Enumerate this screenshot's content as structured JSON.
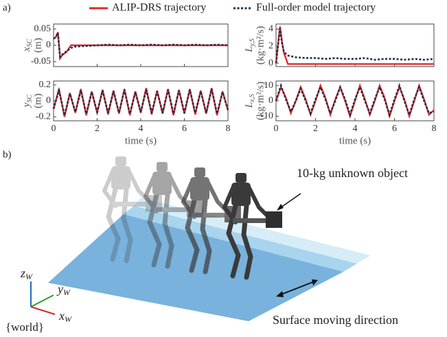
{
  "panel_labels": [
    "a)",
    "b)"
  ],
  "chart_data": [
    {
      "type": "line",
      "ylabel": {
        "symbol": "x",
        "subscript": "SC",
        "unit": "(m)"
      },
      "x": [
        0,
        0.1,
        0.2,
        0.3,
        0.4,
        0.6,
        0.8,
        1,
        1.5,
        2,
        2.5,
        3,
        3.5,
        4,
        4.5,
        5,
        5.5,
        6,
        6.5,
        7,
        7.5,
        8
      ],
      "series": [
        {
          "name": "ALIP-DRS trajectory",
          "color": "#e02a2a",
          "linestyle": "solid",
          "values": [
            0.02,
            0.025,
            0.04,
            -0.04,
            -0.03,
            -0.02,
            0,
            0,
            0,
            0,
            0,
            0,
            0,
            0,
            0,
            0,
            0,
            0,
            0,
            0,
            0,
            0
          ]
        },
        {
          "name": "Full-order model trajectory",
          "color": "#1b3048",
          "linestyle": "dotted",
          "values": [
            0.02,
            0.025,
            0.038,
            -0.035,
            -0.028,
            -0.018,
            -0.008,
            -0.004,
            -0.002,
            0,
            0.002,
            0,
            0.002,
            0,
            0.002,
            0,
            0.002,
            0,
            0.002,
            0,
            0.002,
            0
          ]
        }
      ],
      "xlim": [
        0,
        8
      ],
      "xticks": [
        0,
        2,
        4,
        6,
        8
      ],
      "ylim": [
        -0.065,
        0.065
      ],
      "yticks": [
        -0.05,
        0,
        0.05
      ]
    },
    {
      "type": "line",
      "ylabel": {
        "symbol": "L",
        "subscript": "y,S",
        "unit": "(kg·m²/s)"
      },
      "x": [
        0,
        0.1,
        0.2,
        0.3,
        0.4,
        0.6,
        0.8,
        1,
        1.5,
        2,
        2.5,
        3,
        3.5,
        4,
        4.5,
        5,
        5.5,
        6,
        6.5,
        7,
        7.5,
        8
      ],
      "series": [
        {
          "color": "#e02a2a",
          "linestyle": "solid",
          "values": [
            0,
            2.2,
            4.3,
            2.6,
            1.2,
            -0.1,
            -0.1,
            -0.1,
            -0.1,
            -0.1,
            -0.1,
            -0.1,
            -0.1,
            -0.1,
            -0.1,
            -0.1,
            -0.1,
            -0.1,
            -0.1,
            -0.1,
            -0.1,
            -0.1
          ]
        },
        {
          "color": "#1b3048",
          "linestyle": "dotted",
          "values": [
            0,
            2.1,
            4.1,
            2.4,
            1.3,
            0.9,
            0.8,
            0.7,
            0.6,
            0.6,
            0.5,
            0.6,
            0.5,
            0.5,
            0.6,
            0.4,
            0.5,
            0.5,
            0.4,
            0.5,
            0.4,
            0.5
          ]
        }
      ],
      "xlim": [
        0,
        8
      ],
      "xticks": [
        0,
        2,
        4,
        6,
        8
      ],
      "ylim": [
        -0.4,
        4.6
      ],
      "yticks": [
        0,
        2,
        4
      ]
    },
    {
      "type": "line",
      "ylabel": {
        "symbol": "y",
        "subscript": "SC",
        "unit": "(m)"
      },
      "xlabel": "time (s)",
      "x": [
        0,
        0.25,
        0.5,
        0.75,
        1,
        1.25,
        1.5,
        1.75,
        2,
        2.25,
        2.5,
        2.75,
        3,
        3.25,
        3.5,
        3.75,
        4,
        4.25,
        4.5,
        4.75,
        5,
        5.25,
        5.5,
        5.75,
        6,
        6.25,
        6.5,
        6.75,
        7,
        7.25,
        7.5,
        7.75,
        8
      ],
      "series": [
        {
          "color": "#e02a2a",
          "linestyle": "solid",
          "values": [
            -0.1,
            0.15,
            -0.2,
            0.1,
            -0.15,
            0.15,
            -0.18,
            0.12,
            -0.15,
            0.14,
            -0.17,
            0.13,
            -0.16,
            0.15,
            -0.18,
            0.12,
            -0.15,
            0.16,
            -0.17,
            0.13,
            -0.16,
            0.15,
            -0.18,
            0.14,
            -0.16,
            0.15,
            -0.17,
            0.13,
            -0.16,
            0.16,
            -0.18,
            0.12,
            -0.12
          ]
        },
        {
          "color": "#1b3048",
          "linestyle": "dotted",
          "values": [
            -0.1,
            0.13,
            -0.18,
            0.09,
            -0.14,
            0.13,
            -0.16,
            0.11,
            -0.14,
            0.13,
            -0.15,
            0.12,
            -0.15,
            0.14,
            -0.16,
            0.11,
            -0.14,
            0.14,
            -0.15,
            0.12,
            -0.15,
            0.14,
            -0.16,
            0.13,
            -0.15,
            0.14,
            -0.15,
            0.12,
            -0.15,
            0.15,
            -0.16,
            0.11,
            -0.11
          ]
        }
      ],
      "xlim": [
        0,
        8
      ],
      "xticks": [
        0,
        2,
        4,
        6,
        8
      ],
      "ylim": [
        -0.25,
        0.25
      ],
      "yticks": [
        -0.2,
        0,
        0.2
      ]
    },
    {
      "type": "line",
      "ylabel": {
        "symbol": "L",
        "subscript": "x,S",
        "unit": "(kg·m²/s)"
      },
      "xlabel": "time (s)",
      "x": [
        0,
        0.25,
        0.5,
        0.75,
        1,
        1.25,
        1.5,
        1.75,
        2,
        2.25,
        2.5,
        2.75,
        3,
        3.25,
        3.5,
        3.75,
        4,
        4.25,
        4.5,
        4.75,
        5,
        5.25,
        5.5,
        5.75,
        6,
        6.25,
        6.5,
        6.75,
        7,
        7.25,
        7.5,
        7.75,
        8
      ],
      "series": [
        {
          "color": "#e02a2a",
          "linestyle": "solid",
          "values": [
            0,
            9,
            2,
            -8,
            0,
            9,
            1,
            -9,
            0,
            10,
            2,
            -9,
            1,
            9,
            0,
            -10,
            0,
            10,
            1,
            -9,
            0,
            10,
            2,
            -10,
            0,
            9,
            1,
            -10,
            0,
            10,
            1,
            -9,
            -6
          ]
        },
        {
          "color": "#1b3048",
          "linestyle": "dotted",
          "values": [
            0,
            10,
            1,
            -7,
            0,
            8,
            0,
            -8,
            1,
            9,
            1,
            -8,
            0,
            9,
            1,
            -9,
            1,
            9,
            0,
            -8,
            1,
            9,
            1,
            -9,
            1,
            10,
            0,
            -9,
            1,
            9,
            0,
            -8,
            -7
          ]
        }
      ],
      "xlim": [
        0,
        8
      ],
      "xticks": [
        0,
        2,
        4,
        6,
        8
      ],
      "ylim": [
        -13,
        13
      ],
      "yticks": [
        -10,
        0,
        10
      ]
    }
  ],
  "illustration": {
    "object_label": "10-kg unknown object",
    "direction_label": "Surface moving direction",
    "frame_label": "{world}",
    "axes": [
      {
        "symbol": "z",
        "subscript": "W"
      },
      {
        "symbol": "y",
        "subscript": "W"
      },
      {
        "symbol": "x",
        "subscript": "W"
      }
    ]
  }
}
